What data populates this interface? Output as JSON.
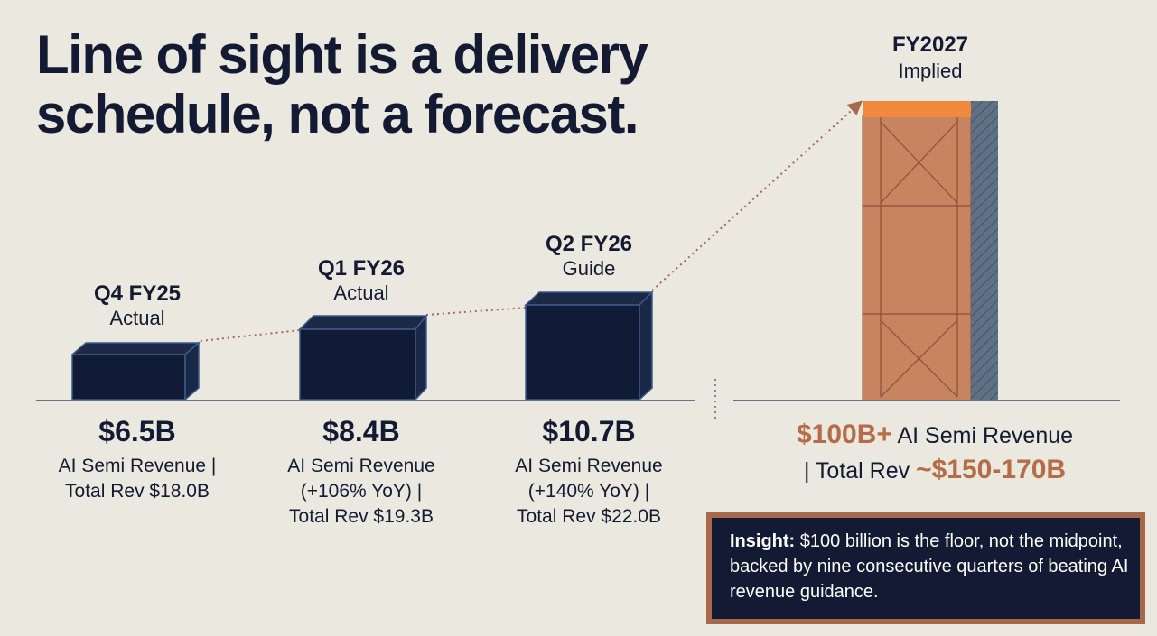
{
  "title": "Line of sight is a delivery schedule, not a forecast.",
  "columns": [
    {
      "label": "Q4 FY25",
      "status": "Actual",
      "value": "$6.5B",
      "lines": [
        "AI Semi Revenue |",
        "Total Rev $18.0B"
      ]
    },
    {
      "label": "Q1 FY26",
      "status": "Actual",
      "value": "$8.4B",
      "lines": [
        "AI Semi Revenue",
        "(+106% YoY) |",
        "Total Rev $19.3B"
      ]
    },
    {
      "label": "Q2 FY26",
      "status": "Guide",
      "value": "$10.7B",
      "lines": [
        "AI Semi Revenue",
        "(+140% YoY) |",
        "Total Rev $22.0B"
      ]
    }
  ],
  "target": {
    "label": "FY2027",
    "status": "Implied",
    "value": "$100B+",
    "text1": "AI Semi Revenue",
    "text2": "| Total Rev",
    "value2": "~$150-170B"
  },
  "insight": {
    "label": "Insight:",
    "text": "$100 billion is the floor, not the midpoint, backed by nine consecutive quarters of beating AI revenue guidance."
  }
}
